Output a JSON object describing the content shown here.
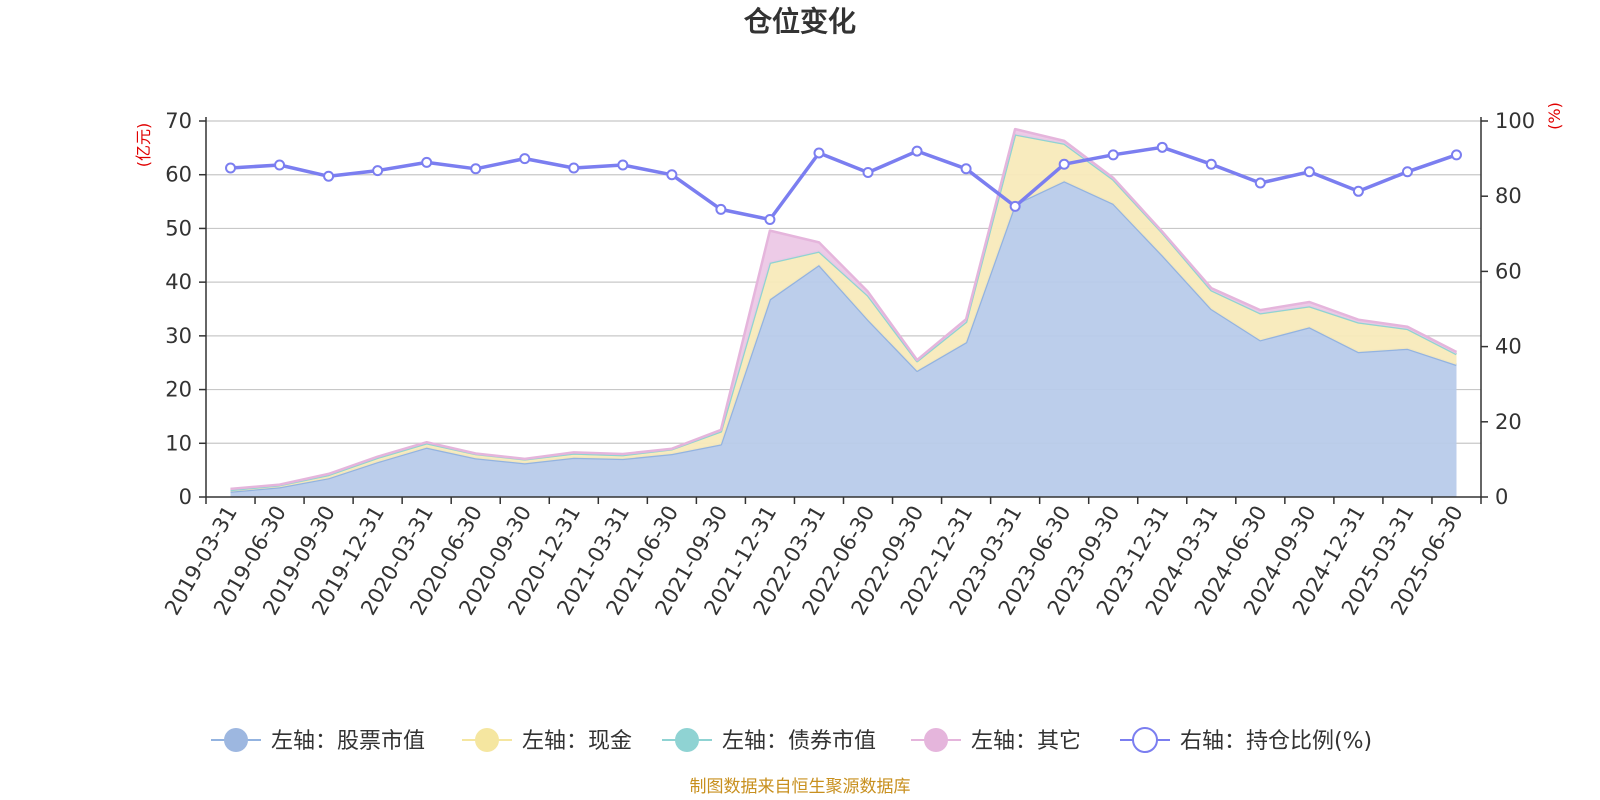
{
  "chart_data": {
    "type": "area",
    "title": "仓位变化",
    "left_axis_unit": "(亿元)",
    "right_axis_unit": "(%)",
    "left_ylim": [
      0,
      70
    ],
    "left_ticks": [
      0,
      10,
      20,
      30,
      40,
      50,
      60,
      70
    ],
    "right_ylim": [
      0,
      100
    ],
    "right_ticks": [
      0,
      20,
      40,
      60,
      80,
      100
    ],
    "grid": true,
    "legend_position": "bottom",
    "categories": [
      "2019-03-31",
      "2019-06-30",
      "2019-09-30",
      "2019-12-31",
      "2020-03-31",
      "2020-06-30",
      "2020-09-30",
      "2020-12-31",
      "2021-03-31",
      "2021-06-30",
      "2021-09-30",
      "2021-12-31",
      "2022-03-31",
      "2022-06-30",
      "2022-09-30",
      "2022-12-31",
      "2023-03-31",
      "2023-06-30",
      "2023-09-30",
      "2023-12-31",
      "2024-03-31",
      "2024-06-30",
      "2024-09-30",
      "2024-12-31",
      "2025-03-31",
      "2025-06-30"
    ],
    "series": [
      {
        "name": "左轴：股票市值",
        "axis": "left",
        "kind": "stacked-area",
        "color": "#93b3e0",
        "fill": "#b8cbea",
        "values": [
          1.0,
          1.8,
          3.5,
          6.5,
          9.2,
          7.2,
          6.3,
          7.3,
          7.1,
          8.0,
          9.8,
          36.8,
          43.2,
          33.0,
          23.5,
          28.8,
          54.5,
          58.8,
          54.6,
          45.0,
          35.0,
          29.2,
          31.6,
          27.0,
          27.6,
          24.6
        ]
      },
      {
        "name": "左轴：现金",
        "axis": "left",
        "kind": "stacked-area",
        "color": "#f5e6a0",
        "fill": "#f8eaba",
        "values": [
          0.3,
          0.4,
          0.6,
          0.8,
          0.8,
          0.8,
          0.7,
          0.8,
          0.7,
          0.9,
          2.4,
          6.8,
          2.5,
          4.5,
          1.8,
          3.8,
          13.0,
          7.0,
          4.5,
          4.2,
          3.5,
          5.0,
          3.9,
          5.5,
          3.7,
          2.0
        ]
      },
      {
        "name": "左轴：债券市值",
        "axis": "left",
        "kind": "stacked-area",
        "color": "#8fd3d3",
        "fill": "#a9dede",
        "values": [
          0,
          0,
          0,
          0,
          0,
          0,
          0,
          0,
          0,
          0,
          0,
          0,
          0,
          0,
          0,
          0,
          0,
          0,
          0,
          0,
          0,
          0,
          0,
          0,
          0,
          0
        ]
      },
      {
        "name": "左轴：其它",
        "axis": "left",
        "kind": "stacked-area",
        "color": "#e5b5dc",
        "fill": "#ecc8e6",
        "values": [
          0.2,
          0.1,
          0.2,
          0.2,
          0.2,
          0.1,
          0.1,
          0.2,
          0.2,
          0.1,
          0.3,
          6.0,
          1.7,
          0.7,
          0.2,
          0.5,
          1.0,
          0.5,
          0.3,
          0.2,
          0.4,
          0.6,
          0.8,
          0.5,
          0.4,
          0.4
        ]
      },
      {
        "name": "右轴：持仓比例(%)",
        "axis": "right",
        "kind": "line",
        "color": "#7b7ef0",
        "values": [
          87.5,
          88.3,
          85.3,
          86.8,
          89.0,
          87.3,
          90.0,
          87.5,
          88.3,
          85.7,
          76.5,
          73.8,
          91.5,
          86.3,
          92.0,
          87.3,
          77.3,
          88.5,
          91.0,
          93.0,
          88.5,
          83.5,
          86.5,
          81.3,
          86.5,
          91.0
        ]
      }
    ],
    "source": "制图数据来自恒生聚源数据库"
  }
}
